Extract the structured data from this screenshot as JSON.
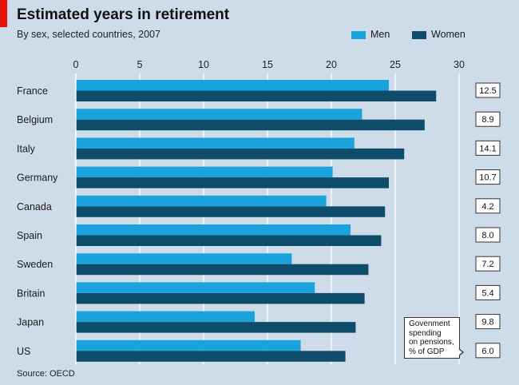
{
  "header": {
    "title": "Estimated years in retirement",
    "subtitle": "By sex, selected countries, 2007"
  },
  "colors": {
    "background": "#cddce8",
    "men": "#1ba3dd",
    "women": "#0d4d6a",
    "accent_tab": "#e3120b"
  },
  "chart_data": {
    "type": "bar",
    "orientation": "horizontal",
    "title": "Estimated years in retirement",
    "subtitle": "By sex, selected countries, 2007",
    "categories": [
      "France",
      "Belgium",
      "Italy",
      "Germany",
      "Canada",
      "Spain",
      "Sweden",
      "Britain",
      "Japan",
      "US"
    ],
    "series": [
      {
        "name": "Men",
        "values": [
          24.5,
          22.4,
          21.8,
          20.1,
          19.6,
          21.5,
          16.9,
          18.7,
          14.0,
          17.6
        ]
      },
      {
        "name": "Women",
        "values": [
          28.2,
          27.3,
          25.7,
          24.5,
          24.2,
          23.9,
          22.9,
          22.6,
          21.9,
          21.1
        ]
      }
    ],
    "xlim": [
      0,
      30
    ],
    "ticks": [
      0,
      5,
      10,
      15,
      20,
      25,
      30
    ],
    "grid": true,
    "legend_position": "top-right",
    "side_values": [
      "12.5",
      "8.9",
      "14.1",
      "10.7",
      "4.2",
      "8.0",
      "7.2",
      "5.4",
      "9.8",
      "6.0"
    ],
    "side_note": "Govenment spending on pensions, % of GDP"
  },
  "callout": {
    "lines": [
      "Govenment",
      "spending",
      "on pensions,",
      "% of GDP"
    ]
  },
  "footer": {
    "source": "Source: OECD"
  }
}
